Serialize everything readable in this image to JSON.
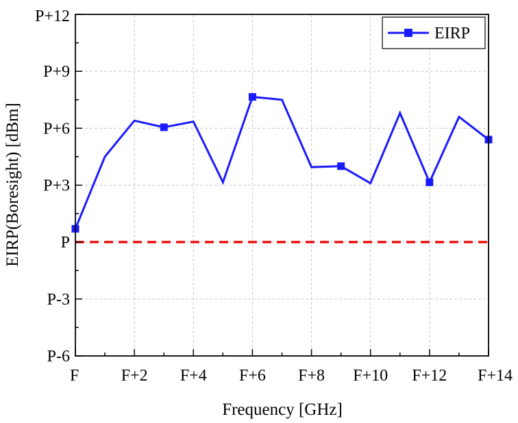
{
  "chart_data": {
    "type": "line",
    "xlabel": "Frequency [GHz]",
    "ylabel": "EIRP(Boresight) [dBm]",
    "xlim": [
      0,
      14
    ],
    "ylim": [
      -6,
      12
    ],
    "grid": true,
    "legend_position": "top-right",
    "x_ticks": [
      {
        "value": 0,
        "label": "F"
      },
      {
        "value": 2,
        "label": "F+2"
      },
      {
        "value": 4,
        "label": "F+4"
      },
      {
        "value": 6,
        "label": "F+6"
      },
      {
        "value": 8,
        "label": "F+8"
      },
      {
        "value": 10,
        "label": "F+10"
      },
      {
        "value": 12,
        "label": "F+12"
      },
      {
        "value": 14,
        "label": "F+14"
      }
    ],
    "y_ticks": [
      {
        "value": -6,
        "label": "P-6"
      },
      {
        "value": -3,
        "label": "P-3"
      },
      {
        "value": 0,
        "label": "P"
      },
      {
        "value": 3,
        "label": "P+3"
      },
      {
        "value": 6,
        "label": "P+6"
      },
      {
        "value": 9,
        "label": "P+9"
      },
      {
        "value": 12,
        "label": "P+12"
      }
    ],
    "series": [
      {
        "name": "EIRP",
        "color": "#1a1aff",
        "marker": "square",
        "x": [
          0,
          1,
          2,
          3,
          4,
          5,
          6,
          7,
          8,
          9,
          10,
          11,
          12,
          13,
          14
        ],
        "y": [
          0.7,
          4.5,
          6.4,
          6.05,
          6.35,
          3.15,
          7.65,
          7.5,
          3.95,
          4.0,
          3.1,
          6.8,
          3.15,
          6.6,
          5.4
        ],
        "marker_x": [
          0,
          3,
          6,
          9,
          12,
          14
        ]
      }
    ],
    "reference_line": {
      "y": 0,
      "color": "#ee1111",
      "style": "dashed"
    }
  }
}
